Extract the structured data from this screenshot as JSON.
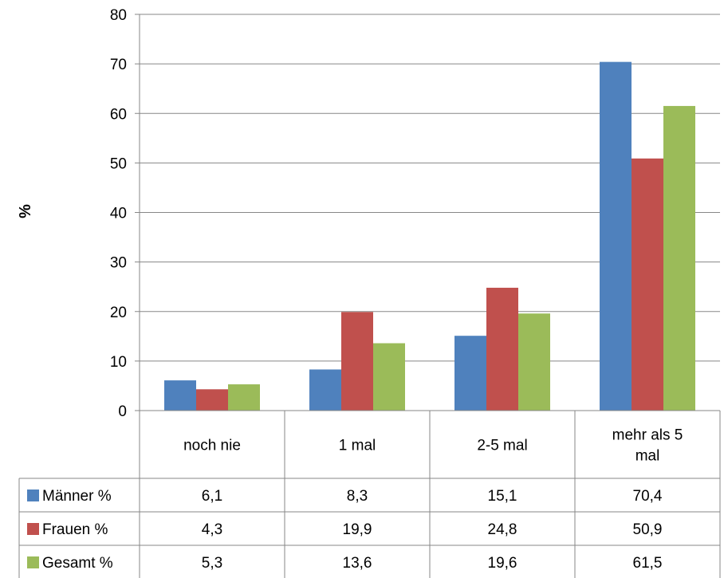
{
  "chart_data": {
    "type": "bar",
    "ylabel": "%",
    "ylim": [
      0,
      80
    ],
    "yticks": [
      0,
      10,
      20,
      30,
      40,
      50,
      60,
      70,
      80
    ],
    "grid": true,
    "categories": [
      "noch nie",
      "1 mal",
      "2-5 mal",
      "mehr als 5 mal"
    ],
    "series": [
      {
        "name": "Männer %",
        "color": "#4F81BD",
        "values": [
          6.1,
          8.3,
          15.1,
          70.4
        ],
        "labels": [
          "6,1",
          "8,3",
          "15,1",
          "70,4"
        ]
      },
      {
        "name": "Frauen %",
        "color": "#C0504D",
        "values": [
          4.3,
          19.9,
          24.8,
          50.9
        ],
        "labels": [
          "4,3",
          "19,9",
          "24,8",
          "50,9"
        ]
      },
      {
        "name": "Gesamt %",
        "color": "#9BBB59",
        "values": [
          5.3,
          13.6,
          19.6,
          61.5
        ],
        "labels": [
          "5,3",
          "13,6",
          "19,6",
          "61,5"
        ]
      }
    ],
    "data_table": true
  }
}
